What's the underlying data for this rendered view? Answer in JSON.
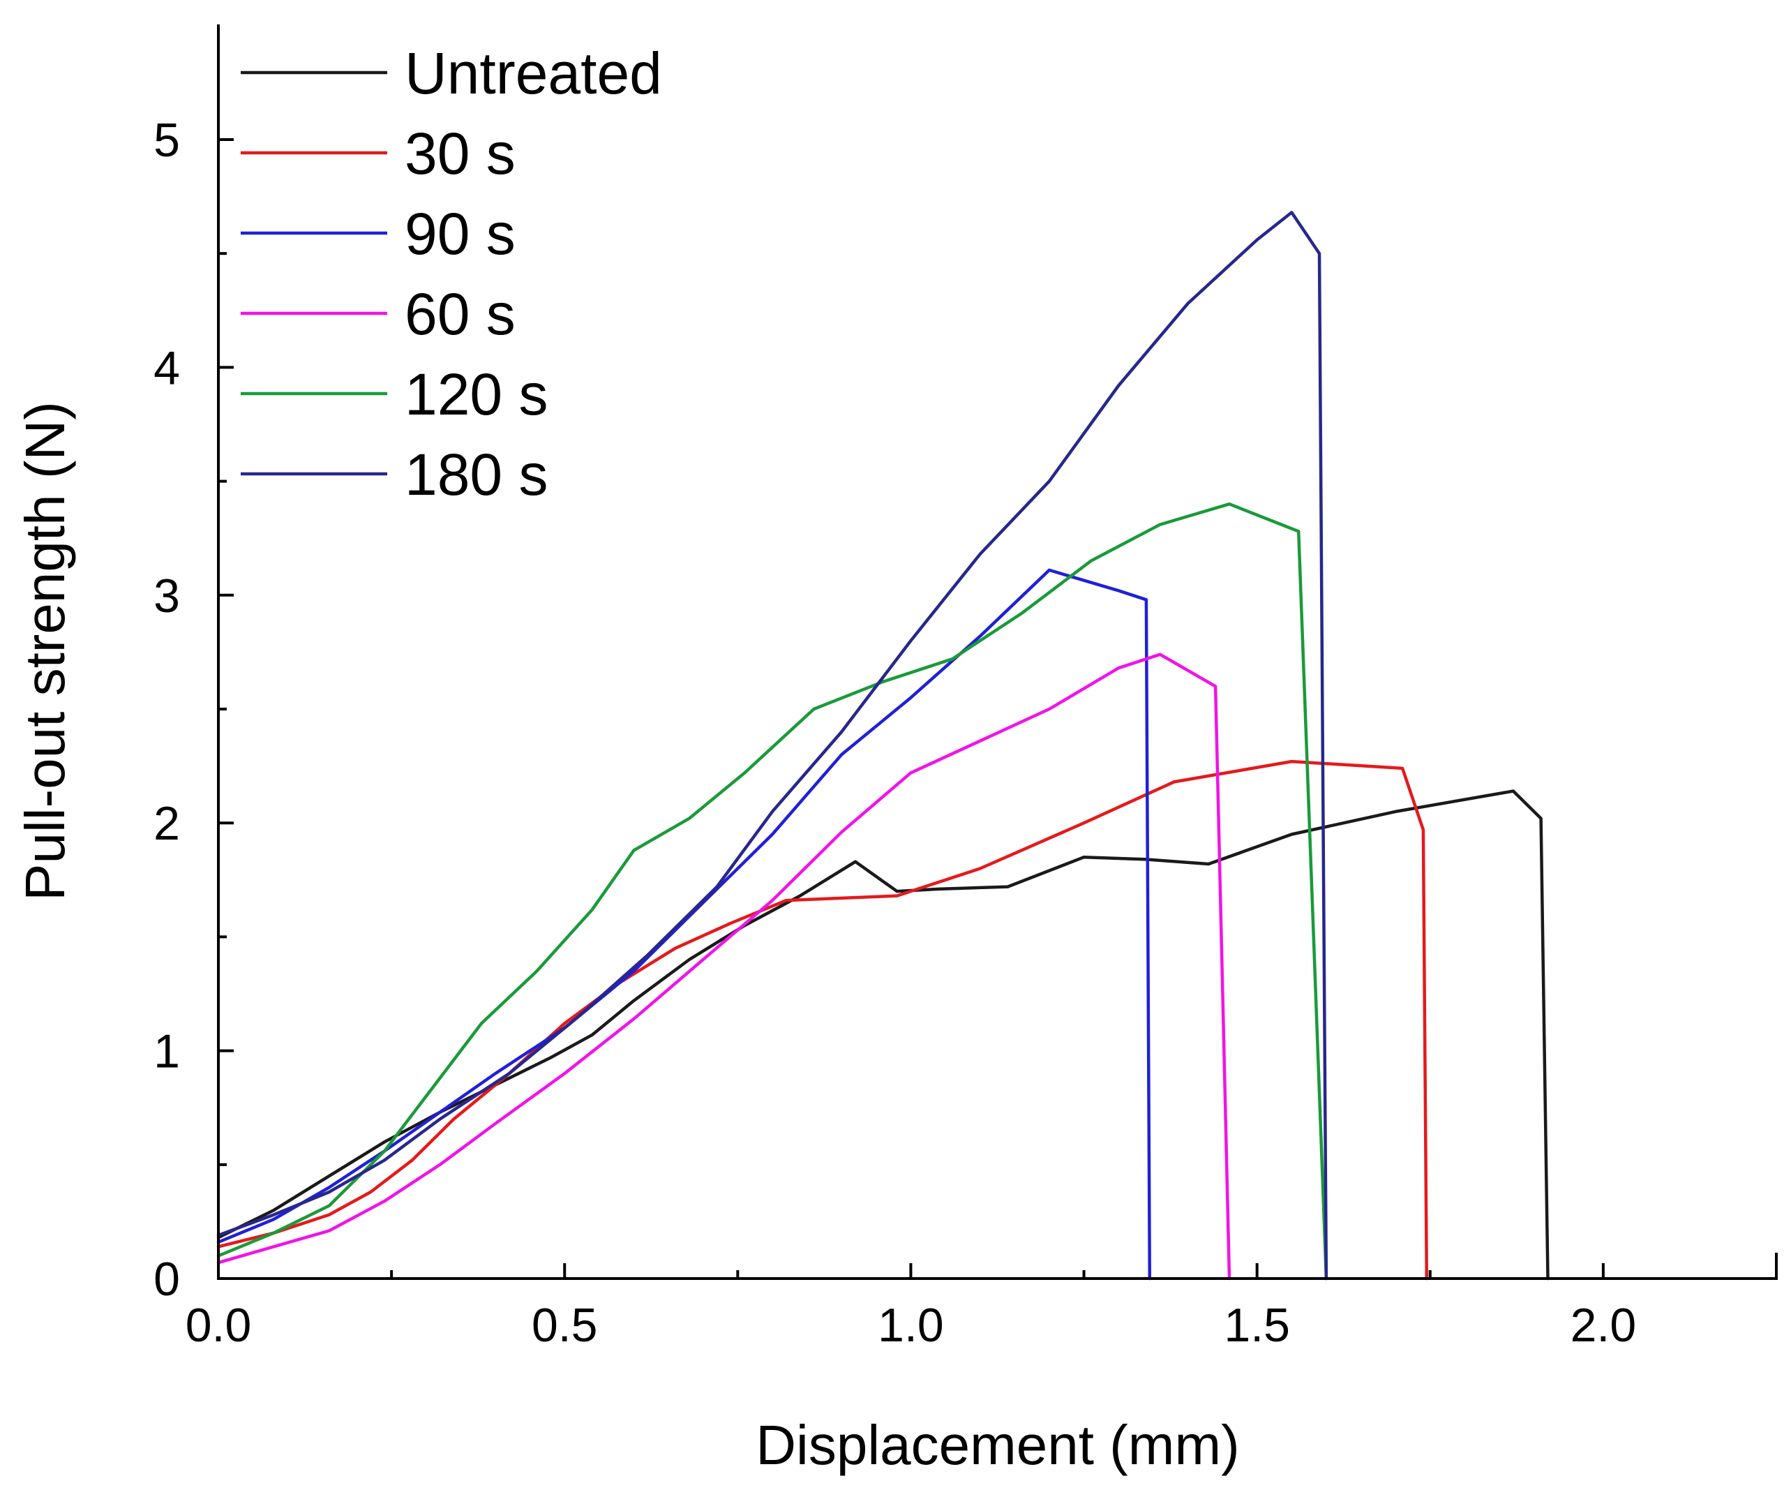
{
  "chart_data": {
    "type": "line",
    "title": "",
    "xlabel": "Displacement (mm)",
    "ylabel": "Pull-out strength (N)",
    "xlim": [
      0,
      2.25
    ],
    "ylim": [
      0,
      5.5
    ],
    "x_major_ticks": [
      0.0,
      0.5,
      1.0,
      1.5,
      2.0
    ],
    "x_minor_ticks": [
      0.25,
      0.75,
      1.25,
      1.75,
      2.25
    ],
    "x_tick_labels": [
      "0.0",
      "0.5",
      "1.0",
      "1.5",
      "2.0"
    ],
    "y_major_ticks": [
      0,
      1,
      2,
      3,
      4,
      5
    ],
    "y_minor_ticks": [
      0.5,
      1.5,
      2.5,
      3.5,
      4.5
    ],
    "y_tick_labels": [
      "0",
      "1",
      "2",
      "3",
      "4",
      "5"
    ],
    "legend_position": "top-left",
    "series": [
      {
        "name": "Untreated",
        "color": "#1a1a1a",
        "points": [
          [
            0,
            0.18
          ],
          [
            0.08,
            0.3
          ],
          [
            0.16,
            0.45
          ],
          [
            0.24,
            0.6
          ],
          [
            0.32,
            0.73
          ],
          [
            0.4,
            0.85
          ],
          [
            0.48,
            0.97
          ],
          [
            0.54,
            1.07
          ],
          [
            0.6,
            1.22
          ],
          [
            0.68,
            1.4
          ],
          [
            0.76,
            1.55
          ],
          [
            0.84,
            1.68
          ],
          [
            0.92,
            1.83
          ],
          [
            0.98,
            1.7
          ],
          [
            1.04,
            1.71
          ],
          [
            1.14,
            1.72
          ],
          [
            1.25,
            1.85
          ],
          [
            1.34,
            1.84
          ],
          [
            1.43,
            1.82
          ],
          [
            1.55,
            1.95
          ],
          [
            1.7,
            2.05
          ],
          [
            1.87,
            2.14
          ],
          [
            1.91,
            2.02
          ],
          [
            1.92,
            0
          ]
        ]
      },
      {
        "name": "30 s",
        "color": "#e41a1c",
        "points": [
          [
            0,
            0.14
          ],
          [
            0.08,
            0.2
          ],
          [
            0.16,
            0.28
          ],
          [
            0.22,
            0.38
          ],
          [
            0.28,
            0.52
          ],
          [
            0.34,
            0.7
          ],
          [
            0.42,
            0.9
          ],
          [
            0.5,
            1.12
          ],
          [
            0.58,
            1.3
          ],
          [
            0.66,
            1.45
          ],
          [
            0.74,
            1.56
          ],
          [
            0.82,
            1.66
          ],
          [
            0.9,
            1.67
          ],
          [
            0.98,
            1.68
          ],
          [
            1.1,
            1.8
          ],
          [
            1.25,
            2.0
          ],
          [
            1.38,
            2.18
          ],
          [
            1.55,
            2.27
          ],
          [
            1.71,
            2.24
          ],
          [
            1.74,
            1.97
          ],
          [
            1.745,
            0
          ]
        ]
      },
      {
        "name": "90 s",
        "color": "#2020d8",
        "points": [
          [
            0,
            0.16
          ],
          [
            0.08,
            0.26
          ],
          [
            0.16,
            0.4
          ],
          [
            0.24,
            0.56
          ],
          [
            0.32,
            0.73
          ],
          [
            0.4,
            0.9
          ],
          [
            0.5,
            1.1
          ],
          [
            0.6,
            1.35
          ],
          [
            0.7,
            1.65
          ],
          [
            0.8,
            1.95
          ],
          [
            0.9,
            2.3
          ],
          [
            1.0,
            2.55
          ],
          [
            1.1,
            2.82
          ],
          [
            1.2,
            3.11
          ],
          [
            1.3,
            3.02
          ],
          [
            1.34,
            2.98
          ],
          [
            1.345,
            0
          ]
        ]
      },
      {
        "name": "60 s",
        "color": "#f014e8",
        "points": [
          [
            0,
            0.07
          ],
          [
            0.08,
            0.14
          ],
          [
            0.16,
            0.21
          ],
          [
            0.24,
            0.34
          ],
          [
            0.32,
            0.5
          ],
          [
            0.4,
            0.68
          ],
          [
            0.5,
            0.9
          ],
          [
            0.6,
            1.14
          ],
          [
            0.7,
            1.4
          ],
          [
            0.8,
            1.66
          ],
          [
            0.9,
            1.96
          ],
          [
            1.0,
            2.22
          ],
          [
            1.1,
            2.36
          ],
          [
            1.2,
            2.5
          ],
          [
            1.3,
            2.68
          ],
          [
            1.36,
            2.74
          ],
          [
            1.44,
            2.6
          ],
          [
            1.46,
            0
          ]
        ]
      },
      {
        "name": "120 s",
        "color": "#1a9a3a",
        "points": [
          [
            0,
            0.1
          ],
          [
            0.08,
            0.2
          ],
          [
            0.16,
            0.32
          ],
          [
            0.24,
            0.56
          ],
          [
            0.3,
            0.8
          ],
          [
            0.38,
            1.12
          ],
          [
            0.46,
            1.35
          ],
          [
            0.54,
            1.62
          ],
          [
            0.6,
            1.88
          ],
          [
            0.68,
            2.02
          ],
          [
            0.76,
            2.22
          ],
          [
            0.86,
            2.5
          ],
          [
            0.96,
            2.62
          ],
          [
            1.06,
            2.72
          ],
          [
            1.16,
            2.92
          ],
          [
            1.26,
            3.15
          ],
          [
            1.36,
            3.31
          ],
          [
            1.46,
            3.4
          ],
          [
            1.56,
            3.28
          ],
          [
            1.6,
            0
          ]
        ]
      },
      {
        "name": "180 s",
        "color": "#27278c",
        "points": [
          [
            0,
            0.19
          ],
          [
            0.08,
            0.28
          ],
          [
            0.16,
            0.38
          ],
          [
            0.24,
            0.52
          ],
          [
            0.32,
            0.7
          ],
          [
            0.42,
            0.9
          ],
          [
            0.52,
            1.15
          ],
          [
            0.62,
            1.42
          ],
          [
            0.72,
            1.72
          ],
          [
            0.8,
            2.05
          ],
          [
            0.9,
            2.4
          ],
          [
            1.0,
            2.8
          ],
          [
            1.1,
            3.18
          ],
          [
            1.2,
            3.5
          ],
          [
            1.3,
            3.92
          ],
          [
            1.4,
            4.28
          ],
          [
            1.5,
            4.56
          ],
          [
            1.55,
            4.68
          ],
          [
            1.59,
            4.5
          ],
          [
            1.6,
            0
          ]
        ]
      }
    ]
  }
}
